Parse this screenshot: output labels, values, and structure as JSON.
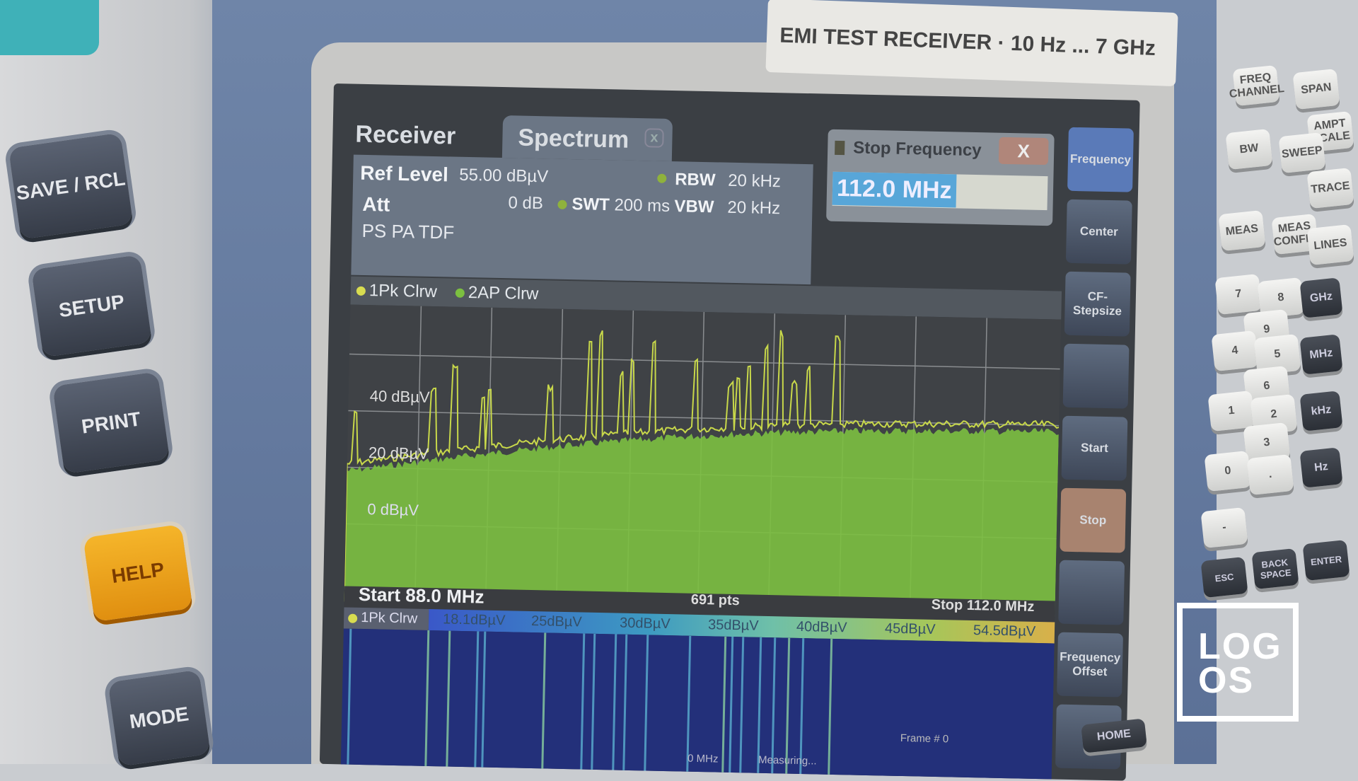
{
  "device": {
    "title_plate": "EMI TEST RECEIVER · 10 Hz ... 7 GHz"
  },
  "front_left": {
    "buttons": [
      "SAVE / RCL",
      "SETUP",
      "PRINT",
      "HELP",
      "MODE"
    ]
  },
  "screen": {
    "tabs": [
      {
        "label": "Receiver",
        "active": false
      },
      {
        "label": "Spectrum",
        "active": true
      }
    ],
    "tab_close": "x",
    "info": {
      "ref_level_label": "Ref Level",
      "ref_level": "55.00 dBµV",
      "att_label": "Att",
      "att": "0 dB",
      "swt_label": "SWT",
      "swt": "200 ms",
      "rbw_label": "RBW",
      "rbw": "20 kHz",
      "vbw_label": "VBW",
      "vbw": "20 kHz",
      "flags": "PS PA TDF"
    },
    "dialog": {
      "title": "Stop Frequency",
      "close": "X",
      "value": "112.0 MHz"
    },
    "softkeys": [
      "Frequency",
      "Center",
      "CF-Stepsize",
      "",
      "Start",
      "Stop",
      "",
      "Frequency Offset",
      ""
    ],
    "traces": [
      "1Pk Clrw",
      "2AP Clrw"
    ],
    "y_labels": [
      "40 dBµV",
      "20 dBµV",
      "0 dBµV"
    ],
    "start": "Start 88.0 MHz",
    "stop": "Stop 112.0 MHz",
    "points": "691 pts",
    "spectrogram": {
      "trace": "1Pk Clrw",
      "colorbar": [
        "18.1dBµV",
        "25dBµV",
        "30dBµV",
        "35dBµV",
        "40dBµV",
        "45dBµV",
        "54.5dBµV"
      ],
      "frame": "Frame # 0",
      "status": "Measuring...",
      "bottom_freq": "0 MHz"
    },
    "colors": {
      "trace1": "#c8d84a",
      "trace2": "#7cc040",
      "spectrogram_bg": "#23307a"
    }
  },
  "keypad": {
    "keys": [
      "FREQ CHANNEL",
      "SPAN",
      "AMPT SCALE",
      "BW",
      "SWEEP",
      "TRACE",
      "MEAS",
      "MEAS CONFIG",
      "LINES",
      "7",
      "8",
      "9",
      "4",
      "5",
      "6",
      "1",
      "2",
      "3",
      "0",
      ".",
      "-"
    ],
    "units": [
      "GHz",
      "MHz",
      "kHz",
      "Hz"
    ],
    "bottom": [
      "ESC",
      "BACK SPACE",
      "ENTER"
    ],
    "home": "HOME"
  },
  "watermark": {
    "logo": "LOG OS"
  }
}
